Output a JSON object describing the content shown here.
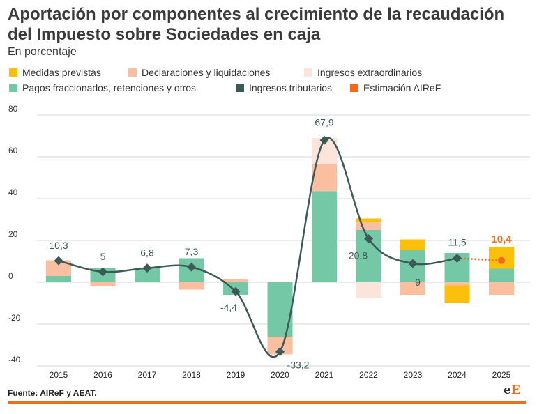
{
  "title": "Aportación por componentes al crecimiento de la recaudación del Impuesto sobre Sociedades en caja",
  "subtitle": "En porcentaje",
  "source": "Fuente: AIReF y AEAT.",
  "logo": {
    "letter1": "e",
    "letter2": "E"
  },
  "legend": [
    {
      "label": "Medidas previstas",
      "color": "#fcbf0a",
      "shape": "square"
    },
    {
      "label": "Declaraciones y liquidaciones",
      "color": "#f9bfa0",
      "shape": "square"
    },
    {
      "label": "Ingresos extraordinarios",
      "color": "#fde4db",
      "shape": "square"
    },
    {
      "label": "Pagos fraccionados, retenciones y otros",
      "color": "#74c8a6",
      "shape": "square"
    },
    {
      "label": "Ingresos tributarios",
      "color": "#3d5a57",
      "shape": "square"
    },
    {
      "label": "Estimación AIReF",
      "color": "#f26a1b",
      "shape": "square"
    }
  ],
  "chart_data": {
    "type": "bar",
    "stacked": true,
    "categories": [
      "2015",
      "2016",
      "2017",
      "2018",
      "2019",
      "2020",
      "2021",
      "2022",
      "2023",
      "2024",
      "2025"
    ],
    "ylim": [
      -40,
      80
    ],
    "yticks": [
      80,
      60,
      40,
      20,
      0,
      -20,
      -40
    ],
    "grid": true,
    "series": [
      {
        "name": "Pagos fraccionados, retenciones y otros",
        "color": "#74c8a6",
        "values": [
          3,
          7,
          7,
          11.5,
          -6,
          -26,
          43.5,
          25,
          15.5,
          14,
          6.5
        ]
      },
      {
        "name": "Declaraciones y liquidaciones",
        "color": "#f9bfa0",
        "values": [
          7.5,
          -2,
          0,
          -3.5,
          1.5,
          -8.5,
          13,
          4,
          -6,
          -1.5,
          -6
        ]
      },
      {
        "name": "Ingresos extraordinarios",
        "color": "#fde4db",
        "values": [
          0,
          0,
          0,
          0,
          0,
          0,
          12.5,
          -7.5,
          0,
          0,
          0
        ]
      },
      {
        "name": "Medidas previstas",
        "color": "#fcbf0a",
        "values": [
          0,
          0,
          0,
          0,
          0,
          0,
          0,
          1.5,
          5,
          -8.5,
          10.5
        ]
      }
    ],
    "line": {
      "name": "Ingresos tributarios",
      "color": "#3d5a57",
      "values": [
        10.3,
        5,
        6.8,
        7.3,
        -4.4,
        -33.2,
        67.9,
        20.8,
        9,
        11.5
      ],
      "labels": [
        "10,3",
        "5",
        "6,8",
        "7,3",
        "-4,4",
        "-33,2",
        "67,9",
        "20,8",
        "9",
        "11,5"
      ]
    },
    "estimate": {
      "name": "Estimación AIReF",
      "color": "#f26a1b",
      "category": "2025",
      "value": 10.4,
      "label": "10,4"
    }
  }
}
